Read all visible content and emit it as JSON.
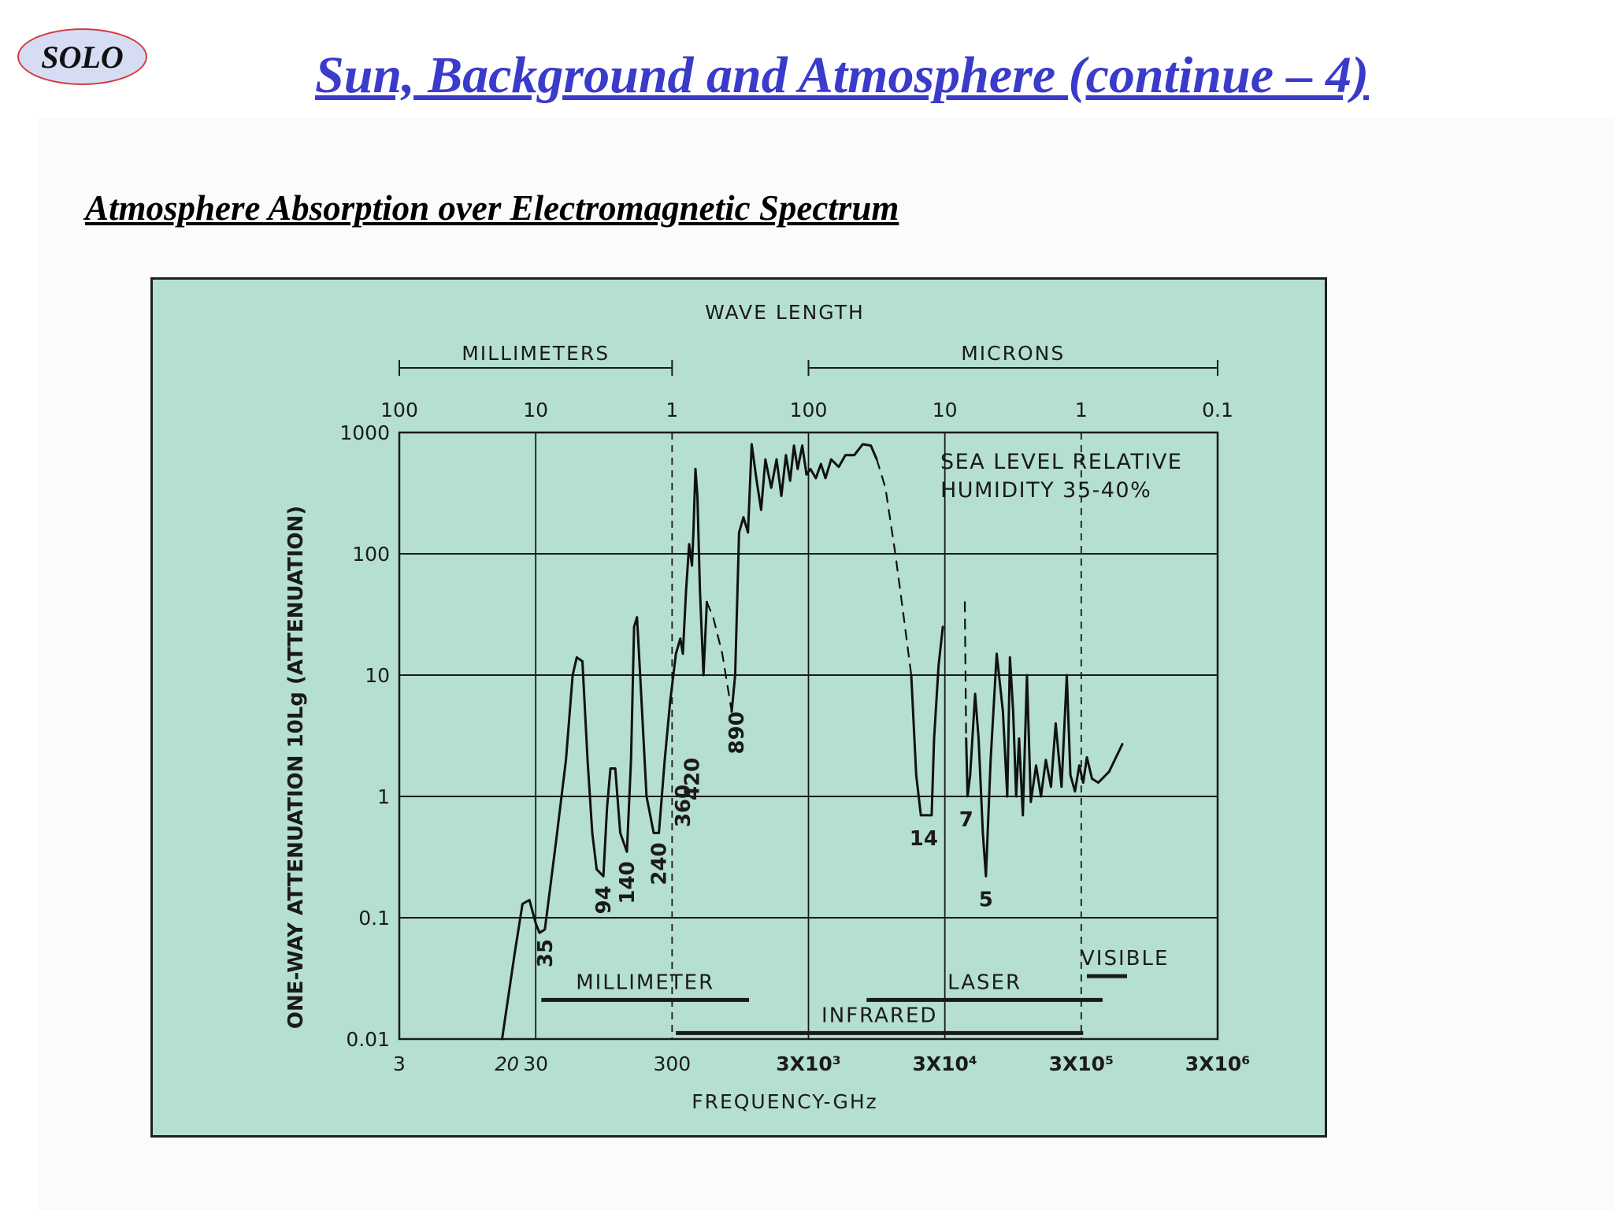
{
  "header": {
    "logo_text": "SOLO",
    "title": "Sun, Background and Atmosphere (continue – 4)",
    "subtitle": "Atmosphere Absorption over Electromagnetic Spectrum"
  },
  "chart_data": {
    "type": "line",
    "top_title": "WAVE LENGTH",
    "xlabel": "FREQUENCY-GHz",
    "ylabel": "ONE-WAY ATTENUATION  10Lg (ATTENUATION)",
    "x_scale": "log",
    "y_scale": "log",
    "xlim": [
      3,
      3000000
    ],
    "ylim": [
      0.01,
      1000
    ],
    "x_ticks": [
      {
        "v": 3,
        "label": "3"
      },
      {
        "v": 30,
        "label": "30"
      },
      {
        "v": 300,
        "label": "300"
      },
      {
        "v": 3000,
        "label": "3X10³"
      },
      {
        "v": 30000,
        "label": "3X10⁴"
      },
      {
        "v": 300000,
        "label": "3X10⁵"
      },
      {
        "v": 3000000,
        "label": "3X10⁶"
      }
    ],
    "x_extra_tick": {
      "v": 20,
      "label": "20"
    },
    "y_ticks": [
      {
        "v": 0.01,
        "label": "0.01"
      },
      {
        "v": 0.1,
        "label": "0.1"
      },
      {
        "v": 1,
        "label": "1"
      },
      {
        "v": 10,
        "label": "10"
      },
      {
        "v": 100,
        "label": "100"
      },
      {
        "v": 1000,
        "label": "1000"
      }
    ],
    "top_ticks": [
      {
        "v": 3,
        "label": "100"
      },
      {
        "v": 30,
        "label": "10"
      },
      {
        "v": 300,
        "label": "1"
      },
      {
        "v": 3000,
        "label": "100"
      },
      {
        "v": 30000,
        "label": "10"
      },
      {
        "v": 300000,
        "label": "1"
      },
      {
        "v": 3000000,
        "label": "0.1"
      }
    ],
    "wavelength_bands": [
      {
        "label": "MILLIMETERS",
        "from": 3,
        "to": 300
      },
      {
        "label": "MICRONS",
        "from": 3000,
        "to": 3000000
      }
    ],
    "grid": true,
    "annotation": [
      "SEA LEVEL RELATIVE",
      "HUMIDITY 35-40%"
    ],
    "window_labels": [
      {
        "label": "35",
        "x": 35,
        "y": 0.08,
        "rotate": true
      },
      {
        "label": "94",
        "x": 94,
        "y": 0.22,
        "rotate": true
      },
      {
        "label": "140",
        "x": 140,
        "y": 0.35,
        "rotate": true
      },
      {
        "label": "240",
        "x": 240,
        "y": 0.5,
        "rotate": true
      },
      {
        "label": "360",
        "x": 360,
        "y": 1.5,
        "rotate": true
      },
      {
        "label": "420",
        "x": 420,
        "y": 2.5,
        "rotate": true
      },
      {
        "label": "890",
        "x": 890,
        "y": 6,
        "rotate": true
      },
      {
        "label": "14",
        "x": 21000,
        "y": 0.7,
        "rotate": false
      },
      {
        "label": "7",
        "x": 43000,
        "y": 1,
        "rotate": false
      },
      {
        "label": "5",
        "x": 60000,
        "y": 0.22,
        "rotate": false
      }
    ],
    "band_bars": [
      {
        "label": "MILLIMETER",
        "from": 33,
        "to": 1100,
        "level": 0.021
      },
      {
        "label": "LASER",
        "from": 8000,
        "to": 430000,
        "level": 0.021
      },
      {
        "label": "VISIBLE",
        "from": 330000,
        "to": 650000,
        "level": 0.033
      },
      {
        "label": "INFRARED",
        "from": 320,
        "to": 310000,
        "level": 0.0112
      }
    ],
    "series": [
      {
        "style": "solid",
        "points": [
          [
            17,
            0.01
          ],
          [
            21,
            0.05
          ],
          [
            24,
            0.13
          ],
          [
            27,
            0.14
          ],
          [
            30,
            0.09
          ],
          [
            32,
            0.075
          ],
          [
            35,
            0.08
          ],
          [
            42,
            0.4
          ],
          [
            50,
            2
          ],
          [
            56,
            10
          ],
          [
            60,
            14
          ],
          [
            66,
            13
          ],
          [
            72,
            2
          ],
          [
            78,
            0.5
          ],
          [
            84,
            0.25
          ],
          [
            94,
            0.22
          ],
          [
            100,
            0.8
          ],
          [
            106,
            1.7
          ],
          [
            115,
            1.7
          ],
          [
            125,
            0.5
          ],
          [
            140,
            0.35
          ],
          [
            150,
            2
          ],
          [
            158,
            25
          ],
          [
            166,
            30
          ],
          [
            175,
            10
          ],
          [
            195,
            1
          ],
          [
            220,
            0.5
          ],
          [
            240,
            0.5
          ],
          [
            265,
            2
          ],
          [
            290,
            6
          ],
          [
            320,
            15
          ],
          [
            345,
            20
          ],
          [
            360,
            15
          ],
          [
            380,
            50
          ],
          [
            400,
            120
          ],
          [
            420,
            80
          ],
          [
            430,
            150
          ],
          [
            445,
            500
          ],
          [
            460,
            300
          ],
          [
            480,
            50
          ],
          [
            510,
            10
          ],
          [
            540,
            40
          ]
        ]
      },
      {
        "style": "dashed",
        "points": [
          [
            540,
            40
          ],
          [
            600,
            30
          ],
          [
            700,
            15
          ],
          [
            820,
            5
          ]
        ]
      },
      {
        "style": "solid",
        "points": [
          [
            820,
            5
          ],
          [
            870,
            10
          ],
          [
            930,
            150
          ],
          [
            1000,
            200
          ],
          [
            1080,
            150
          ],
          [
            1150,
            800
          ],
          [
            1250,
            400
          ],
          [
            1350,
            230
          ],
          [
            1450,
            600
          ],
          [
            1600,
            350
          ],
          [
            1750,
            600
          ],
          [
            1900,
            300
          ],
          [
            2050,
            650
          ],
          [
            2200,
            400
          ],
          [
            2350,
            780
          ],
          [
            2500,
            500
          ],
          [
            2700,
            780
          ],
          [
            2900,
            450
          ],
          [
            3100,
            500
          ],
          [
            3400,
            420
          ],
          [
            3700,
            550
          ],
          [
            4000,
            420
          ],
          [
            4400,
            600
          ],
          [
            5000,
            520
          ],
          [
            5600,
            650
          ],
          [
            6500,
            650
          ],
          [
            7500,
            800
          ],
          [
            8600,
            780
          ],
          [
            9500,
            600
          ]
        ]
      },
      {
        "style": "dashed",
        "points": [
          [
            9500,
            600
          ],
          [
            11000,
            350
          ],
          [
            13000,
            100
          ],
          [
            15000,
            30
          ],
          [
            17000,
            10
          ]
        ]
      },
      {
        "style": "solid",
        "points": [
          [
            17000,
            10
          ],
          [
            18500,
            1.5
          ],
          [
            20000,
            0.7
          ],
          [
            22000,
            0.7
          ],
          [
            24000,
            0.7
          ],
          [
            25000,
            3
          ],
          [
            27000,
            12
          ],
          [
            29000,
            25
          ]
        ]
      },
      {
        "style": "dashed",
        "points": [
          [
            42000,
            40
          ],
          [
            43000,
            3
          ]
        ]
      },
      {
        "style": "solid",
        "points": [
          [
            43000,
            3
          ],
          [
            44000,
            1
          ],
          [
            46000,
            1.5
          ],
          [
            50000,
            7
          ],
          [
            53000,
            3
          ],
          [
            57000,
            0.5
          ],
          [
            60000,
            0.22
          ],
          [
            65000,
            2
          ],
          [
            72000,
            15
          ],
          [
            80000,
            5
          ],
          [
            86000,
            1
          ],
          [
            90000,
            14
          ],
          [
            95000,
            5
          ],
          [
            100000,
            1
          ],
          [
            105000,
            3
          ],
          [
            112000,
            0.7
          ],
          [
            120000,
            10
          ],
          [
            128000,
            0.9
          ],
          [
            140000,
            1.8
          ],
          [
            152000,
            1
          ],
          [
            165000,
            2
          ],
          [
            180000,
            1.2
          ],
          [
            195000,
            4
          ],
          [
            215000,
            1.2
          ],
          [
            235000,
            10
          ],
          [
            250000,
            1.5
          ],
          [
            270000,
            1.1
          ],
          [
            290000,
            1.8
          ],
          [
            310000,
            1.3
          ],
          [
            330000,
            2.1
          ],
          [
            360000,
            1.4
          ],
          [
            400000,
            1.3
          ],
          [
            480000,
            1.6
          ],
          [
            600000,
            2.7
          ]
        ]
      }
    ]
  }
}
